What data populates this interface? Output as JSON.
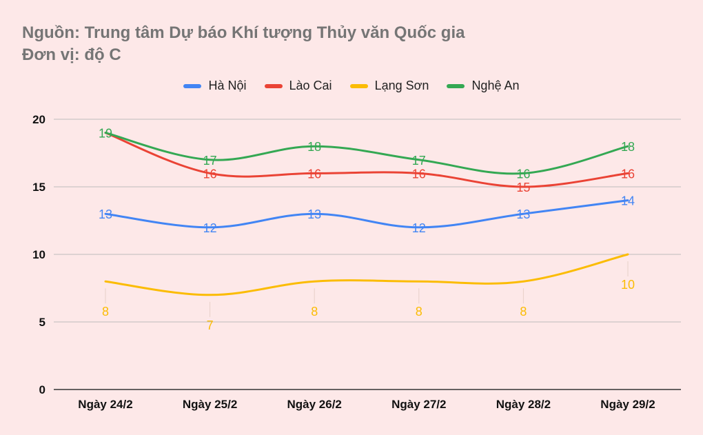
{
  "chart_data": {
    "type": "line",
    "title_lines": [
      "Nguồn: Trung tâm Dự báo Khí tượng Thủy văn Quốc gia",
      "Đơn vị: độ C"
    ],
    "categories": [
      "Ngày 24/2",
      "Ngày 25/2",
      "Ngày 26/2",
      "Ngày 27/2",
      "Ngày 28/2",
      "Ngày 29/2"
    ],
    "ylim": [
      0,
      20
    ],
    "yticks": [
      0,
      5,
      10,
      15,
      20
    ],
    "grid": true,
    "legend_position": "top",
    "series": [
      {
        "name": "Hà Nội",
        "color": "#4285f4",
        "values": [
          13,
          12,
          13,
          12,
          13,
          14
        ],
        "labels": [
          "13",
          "12",
          "13",
          "12",
          "13",
          "14"
        ]
      },
      {
        "name": "Lào Cai",
        "color": "#ea4335",
        "values": [
          19,
          16,
          16,
          16,
          15,
          16
        ],
        "labels": [
          "",
          "16",
          "16",
          "16",
          "15",
          "16"
        ]
      },
      {
        "name": "Lạng Sơn",
        "color": "#fbbc04",
        "values": [
          8,
          7,
          8,
          8,
          8,
          10
        ],
        "labels": [
          "8",
          "7",
          "8",
          "8",
          "8",
          "10"
        ]
      },
      {
        "name": "Nghệ An",
        "color": "#34a853",
        "values": [
          19,
          17,
          18,
          17,
          16,
          18
        ],
        "labels": [
          "19",
          "17",
          "18",
          "17",
          "16",
          "18"
        ]
      }
    ]
  }
}
